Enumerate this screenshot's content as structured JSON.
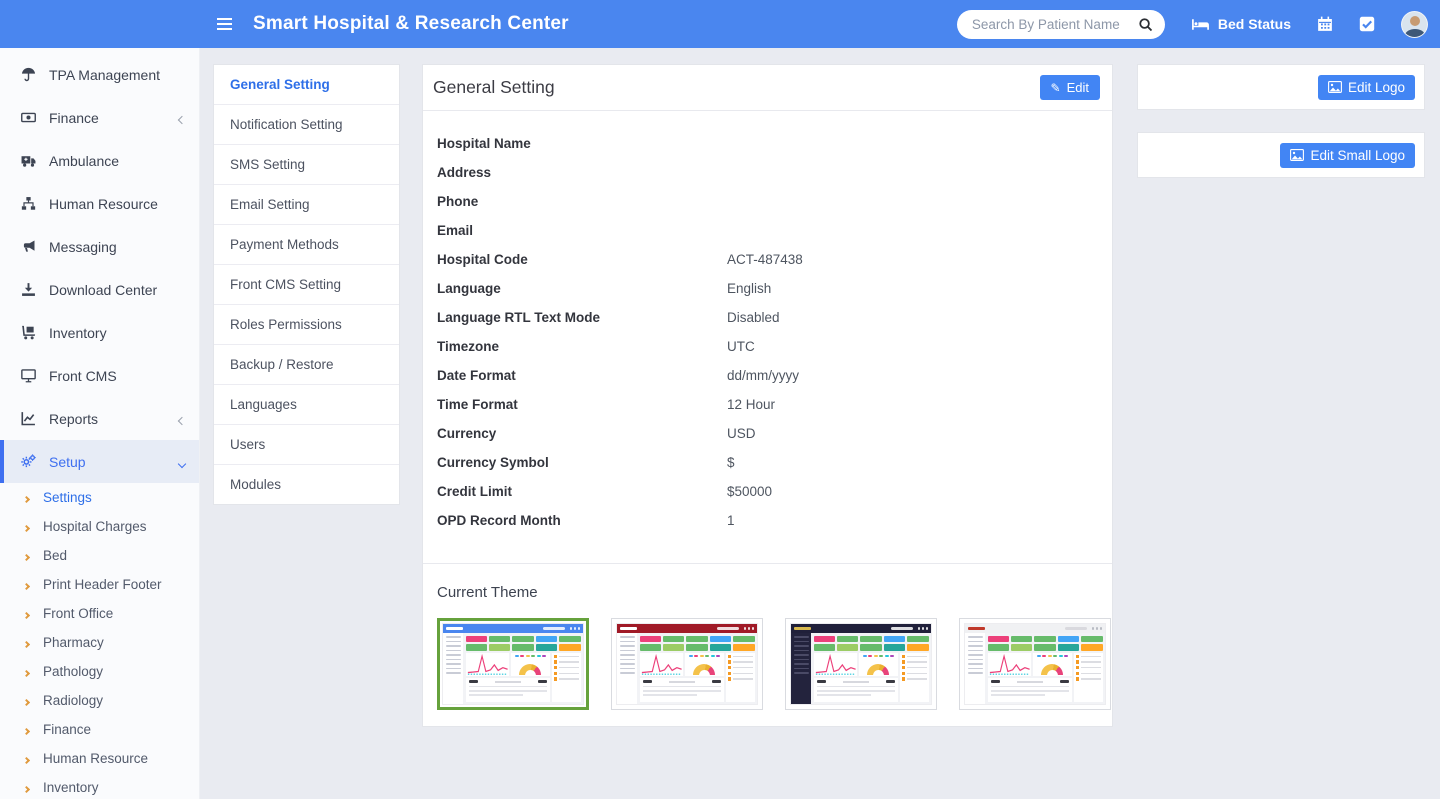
{
  "navbar": {
    "title": "Smart Hospital & Research Center",
    "search_placeholder": "Search By Patient Name",
    "bed_status_label": "Bed Status"
  },
  "sidebar": {
    "items": [
      {
        "label": "TPA Management",
        "icon": "umbrella-icon"
      },
      {
        "label": "Finance",
        "icon": "money-bill-icon",
        "chevron": "left"
      },
      {
        "label": "Ambulance",
        "icon": "ambulance-icon"
      },
      {
        "label": "Human Resource",
        "icon": "sitemap-icon"
      },
      {
        "label": "Messaging",
        "icon": "bullhorn-icon"
      },
      {
        "label": "Download Center",
        "icon": "download-icon"
      },
      {
        "label": "Inventory",
        "icon": "dolly-icon"
      },
      {
        "label": "Front CMS",
        "icon": "tv-icon"
      },
      {
        "label": "Reports",
        "icon": "chart-line-icon",
        "chevron": "left"
      },
      {
        "label": "Setup",
        "icon": "gears-icon",
        "chevron": "down",
        "active": true
      }
    ],
    "submenu": [
      {
        "label": "Settings",
        "active": true
      },
      {
        "label": "Hospital Charges"
      },
      {
        "label": "Bed"
      },
      {
        "label": "Print Header Footer"
      },
      {
        "label": "Front Office"
      },
      {
        "label": "Pharmacy"
      },
      {
        "label": "Pathology"
      },
      {
        "label": "Radiology"
      },
      {
        "label": "Finance"
      },
      {
        "label": "Human Resource"
      },
      {
        "label": "Inventory"
      }
    ]
  },
  "settings_menu": {
    "items": [
      "General Setting",
      "Notification Setting",
      "SMS Setting",
      "Email Setting",
      "Payment Methods",
      "Front CMS Setting",
      "Roles Permissions",
      "Backup / Restore",
      "Languages",
      "Users",
      "Modules"
    ],
    "active": "General Setting"
  },
  "panel": {
    "title": "General Setting",
    "edit_button": "Edit",
    "fields": [
      {
        "label": "Hospital Name",
        "value": ""
      },
      {
        "label": "Address",
        "value": ""
      },
      {
        "label": "Phone",
        "value": ""
      },
      {
        "label": "Email",
        "value": ""
      },
      {
        "label": "Hospital Code",
        "value": "ACT-487438"
      },
      {
        "label": "Language",
        "value": "English"
      },
      {
        "label": "Language RTL Text Mode",
        "value": "Disabled"
      },
      {
        "label": "Timezone",
        "value": "UTC"
      },
      {
        "label": "Date Format",
        "value": "dd/mm/yyyy"
      },
      {
        "label": "Time Format",
        "value": "12 Hour"
      },
      {
        "label": "Currency",
        "value": "USD"
      },
      {
        "label": "Currency Symbol",
        "value": "$"
      },
      {
        "label": "Credit Limit",
        "value": "$50000"
      },
      {
        "label": "OPD Record Month",
        "value": "1"
      }
    ],
    "theme_section_title": "Current Theme"
  },
  "themes": {
    "items": [
      {
        "name": "blue",
        "selected": true,
        "header": "#4a86ef",
        "header_accent": "#ffffff",
        "sidebar": "#ffffff",
        "side_line": "#c9ccd6"
      },
      {
        "name": "red",
        "selected": false,
        "header": "#a01a27",
        "header_accent": "#ffffff",
        "sidebar": "#ffffff",
        "side_line": "#c9ccd6"
      },
      {
        "name": "dark",
        "selected": false,
        "header": "#20203a",
        "header_accent": "#d8b94e",
        "sidebar": "#23233d",
        "side_line": "#4a4a66"
      },
      {
        "name": "light",
        "selected": false,
        "header": "#f0f1f3",
        "header_accent": "#c0392b",
        "sidebar": "#ffffff",
        "side_line": "#c9ccd6"
      }
    ],
    "palette": {
      "stats_row1": [
        "#ec407a",
        "#66bb6a",
        "#66bb6a",
        "#42a5f5",
        "#66bb6a"
      ],
      "stats_row2": [
        "#66bb6a",
        "#9ccc65",
        "#66bb6a",
        "#26a69a",
        "#ffa726"
      ],
      "line": "#ec407a",
      "line_alt": "#26c6da",
      "gauge_main": "#f4c24a",
      "gauge_mid": "#eab02e",
      "gauge_accent": "#e8437a",
      "legend": [
        "#42a5f5",
        "#ec407a",
        "#f4c24a",
        "#66bb6a",
        "#26c6da",
        "#ab47bc"
      ],
      "list_icon": "#f59a23",
      "selected_border": "#66a23c"
    }
  },
  "logo_cards": [
    {
      "button": "Edit Logo"
    },
    {
      "button": "Edit Small Logo"
    }
  ],
  "colors": {
    "navbar": "#4a86ef",
    "accent": "#4285f4",
    "active_link": "#2e6fe8",
    "submenu_chevron": "#e09a3e",
    "page_bg": "#e9ebf1"
  }
}
